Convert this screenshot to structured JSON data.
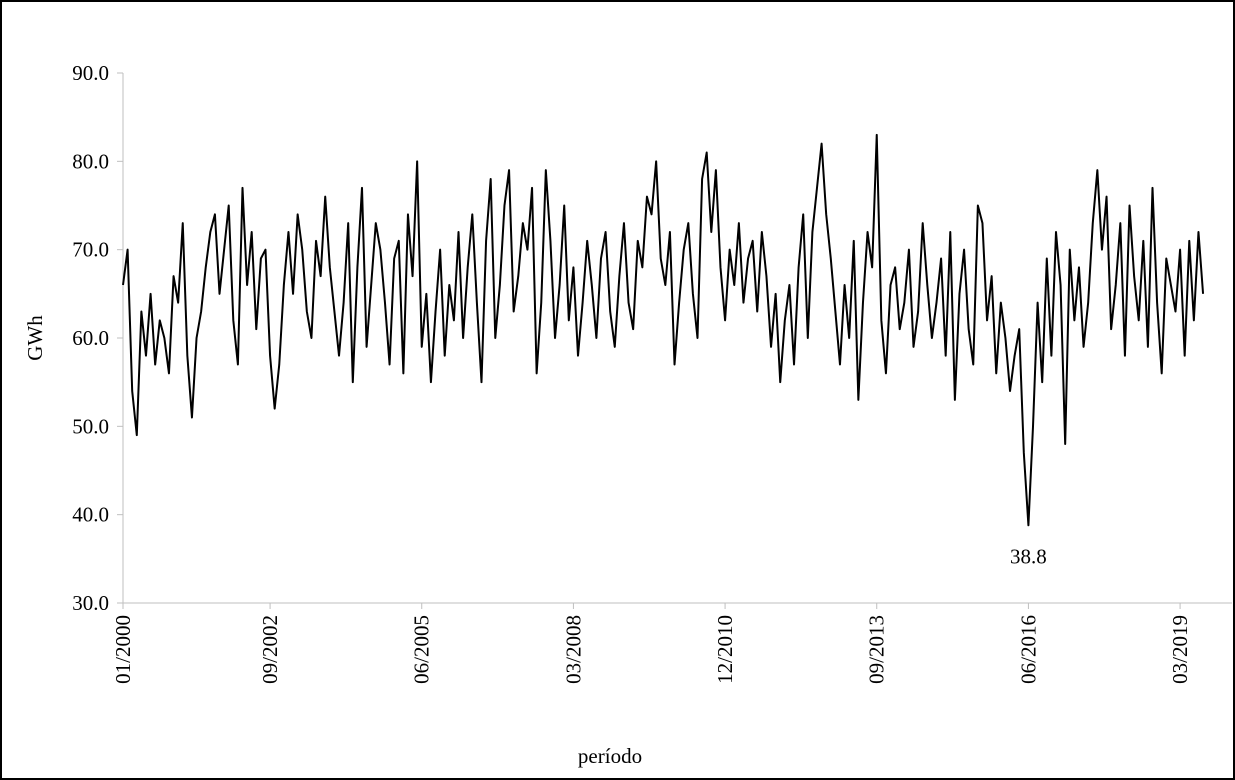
{
  "chart_data": {
    "type": "line",
    "xlabel": "período",
    "ylabel": "GWh",
    "categories": [
      "01/2000",
      null,
      null,
      null,
      null,
      null,
      null,
      null,
      null,
      null,
      null,
      null,
      null,
      null,
      null,
      null,
      null,
      null,
      null,
      null,
      null,
      null,
      null,
      null,
      null,
      null,
      null,
      null,
      null,
      null,
      null,
      null,
      "09/2002",
      null,
      null,
      null,
      null,
      null,
      null,
      null,
      null,
      null,
      null,
      null,
      null,
      null,
      null,
      null,
      null,
      null,
      null,
      null,
      null,
      null,
      null,
      null,
      null,
      null,
      null,
      null,
      null,
      null,
      null,
      null,
      null,
      "06/2005",
      null,
      null,
      null,
      null,
      null,
      null,
      null,
      null,
      null,
      null,
      null,
      null,
      null,
      null,
      null,
      null,
      null,
      null,
      null,
      null,
      null,
      null,
      null,
      null,
      null,
      null,
      null,
      null,
      null,
      null,
      null,
      null,
      "03/2008",
      null,
      null,
      null,
      null,
      null,
      null,
      null,
      null,
      null,
      null,
      null,
      null,
      null,
      null,
      null,
      null,
      null,
      null,
      null,
      null,
      null,
      null,
      null,
      null,
      null,
      null,
      null,
      null,
      null,
      null,
      null,
      null,
      "12/2010",
      null,
      null,
      null,
      null,
      null,
      null,
      null,
      null,
      null,
      null,
      null,
      null,
      null,
      null,
      null,
      null,
      null,
      null,
      null,
      null,
      null,
      null,
      null,
      null,
      null,
      null,
      null,
      null,
      null,
      null,
      null,
      null,
      "09/2013",
      null,
      null,
      null,
      null,
      null,
      null,
      null,
      null,
      null,
      null,
      null,
      null,
      null,
      null,
      null,
      null,
      null,
      null,
      null,
      null,
      null,
      null,
      null,
      null,
      null,
      null,
      null,
      null,
      null,
      null,
      null,
      null,
      "06/2016",
      null,
      null,
      null,
      null,
      null,
      null,
      null,
      null,
      null,
      null,
      null,
      null,
      null,
      null,
      null,
      null,
      null,
      null,
      null,
      null,
      null,
      null,
      null,
      null,
      null,
      null,
      null,
      null,
      null,
      null,
      null,
      null,
      "03/2019",
      null,
      null,
      null,
      null,
      null
    ],
    "series": [
      {
        "name": "GWh",
        "color": "#000000",
        "values": [
          66,
          70,
          54,
          49,
          63,
          58,
          65,
          57,
          62,
          60,
          56,
          67,
          64,
          73,
          58,
          51,
          60,
          63,
          68,
          72,
          74,
          65,
          70,
          75,
          62,
          57,
          77,
          66,
          72,
          61,
          69,
          70,
          58,
          52,
          57,
          66,
          72,
          65,
          74,
          70,
          63,
          60,
          71,
          67,
          76,
          68,
          63,
          58,
          64,
          73,
          55,
          68,
          77,
          59,
          66,
          73,
          70,
          64,
          57,
          69,
          71,
          56,
          74,
          67,
          80,
          59,
          65,
          55,
          63,
          70,
          58,
          66,
          62,
          72,
          60,
          68,
          74,
          64,
          55,
          71,
          78,
          60,
          66,
          75,
          79,
          63,
          67,
          73,
          70,
          77,
          56,
          64,
          79,
          71,
          60,
          66,
          75,
          62,
          68,
          58,
          64,
          71,
          66,
          60,
          69,
          72,
          63,
          59,
          67,
          73,
          64,
          61,
          71,
          68,
          76,
          74,
          80,
          69,
          66,
          72,
          57,
          64,
          70,
          73,
          65,
          60,
          78,
          81,
          72,
          79,
          68,
          62,
          70,
          66,
          73,
          64,
          69,
          71,
          63,
          72,
          67,
          59,
          65,
          55,
          62,
          66,
          57,
          68,
          74,
          60,
          72,
          77,
          82,
          74,
          69,
          63,
          57,
          66,
          60,
          71,
          53,
          64,
          72,
          68,
          83,
          62,
          56,
          66,
          68,
          61,
          64,
          70,
          59,
          63,
          73,
          66,
          60,
          64,
          69,
          58,
          72,
          53,
          65,
          70,
          61,
          57,
          75,
          73,
          62,
          67,
          56,
          64,
          60,
          54,
          58,
          61,
          47,
          38.8,
          50,
          64,
          55,
          69,
          58,
          72,
          66,
          48,
          70,
          62,
          68,
          59,
          64,
          73,
          79,
          70,
          76,
          61,
          66,
          73,
          58,
          75,
          67,
          62,
          71,
          59,
          77,
          64,
          56,
          69,
          66,
          63,
          70,
          58,
          71,
          62,
          72,
          65
        ]
      }
    ],
    "annotations": [
      {
        "text": "38.8",
        "index": 197
      }
    ],
    "ylim": [
      30,
      90
    ],
    "yticks": [
      {
        "value": 30,
        "label": "30.0"
      },
      {
        "value": 40,
        "label": "40.0"
      },
      {
        "value": 50,
        "label": "50.0"
      },
      {
        "value": 60,
        "label": "60.0"
      },
      {
        "value": 70,
        "label": "70.0"
      },
      {
        "value": 80,
        "label": "80.0"
      },
      {
        "value": 90,
        "label": "90.0"
      }
    ],
    "grid": false
  }
}
